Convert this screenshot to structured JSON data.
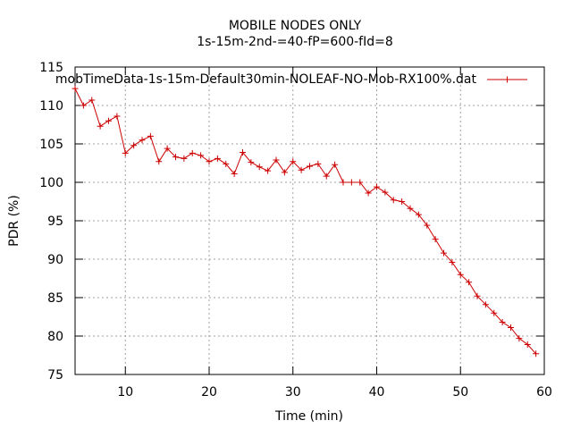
{
  "chart_data": {
    "type": "line",
    "title": "MOBILE NODES ONLY",
    "subtitle": "1s-15m-2nd-=40-fP=600-fId=8",
    "xlabel": "Time (min)",
    "ylabel": "PDR (%)",
    "xlim": [
      4,
      60
    ],
    "ylim": [
      75,
      115
    ],
    "xticks": [
      10,
      20,
      30,
      40,
      50,
      60
    ],
    "yticks": [
      75,
      80,
      85,
      90,
      95,
      100,
      105,
      110,
      115
    ],
    "grid": true,
    "legend_position": "top-right",
    "series": [
      {
        "name": "mobTimeData-1s-15m-Default30min-NOLEAF-NO-Mob-RX100%.dat",
        "color": "#cc0000",
        "marker": "plus",
        "x": [
          4,
          5,
          6,
          7,
          8,
          9,
          10,
          11,
          12,
          13,
          14,
          15,
          16,
          17,
          18,
          19,
          20,
          21,
          22,
          23,
          24,
          25,
          26,
          27,
          28,
          29,
          30,
          31,
          32,
          33,
          34,
          35,
          36,
          37,
          38,
          39,
          40,
          41,
          42,
          43,
          44,
          45,
          46,
          47,
          48,
          49,
          50,
          51,
          52,
          53,
          54,
          55,
          56,
          57,
          58,
          59
        ],
        "values": [
          112.2,
          110.0,
          110.7,
          107.3,
          108.0,
          108.6,
          103.8,
          104.8,
          105.5,
          106.0,
          102.7,
          104.4,
          103.3,
          103.1,
          103.8,
          103.5,
          102.7,
          103.1,
          102.4,
          101.1,
          103.9,
          102.6,
          102.0,
          101.5,
          102.9,
          101.3,
          102.7,
          101.6,
          102.1,
          102.4,
          100.8,
          102.3,
          100.0,
          100.0,
          100.0,
          98.6,
          99.4,
          98.7,
          97.7,
          97.5,
          96.6,
          95.8,
          94.4,
          92.6,
          90.8,
          89.6,
          88.0,
          87.0,
          85.2,
          84.1,
          83.0,
          81.8,
          81.1,
          79.7,
          78.9,
          77.7
        ]
      }
    ]
  }
}
